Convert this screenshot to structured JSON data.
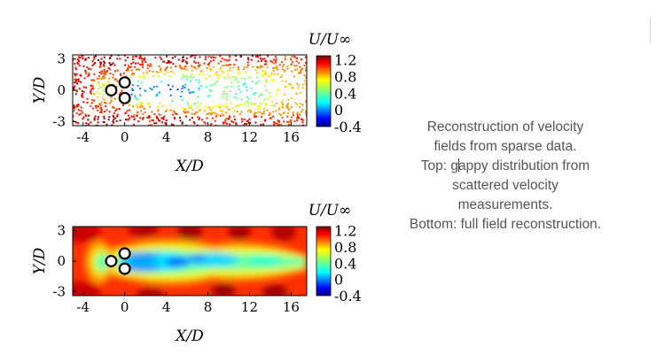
{
  "caption": {
    "line1": "Reconstruction of velocity",
    "line2": "fields from sparse data.",
    "line3_a": "Top: g",
    "line3_b": "appy distribution from",
    "line4": "scattered velocity",
    "line5": "measurements.",
    "line6": "Bottom: full field reconstruction."
  },
  "colors": {
    "jet": [
      "#00007f",
      "#0000ff",
      "#007fff",
      "#00ffff",
      "#7fff7f",
      "#ffff00",
      "#ff7f00",
      "#ff0000",
      "#7f0000"
    ]
  },
  "chart_data": [
    {
      "type": "scatter",
      "title": "",
      "xlabel": "X/D",
      "ylabel": "Y/D",
      "xlim": [
        -5,
        17.5
      ],
      "ylim": [
        -3.4,
        3.4
      ],
      "xticks": [
        "-4",
        "0",
        "4",
        "8",
        "12",
        "16"
      ],
      "yticks": [
        "3",
        "0",
        "-3"
      ],
      "colorbar": {
        "label": "U/U∞",
        "range": [
          -0.4,
          1.3
        ],
        "ticks": [
          "1.2",
          "0.8",
          "0.4",
          "0",
          "-0.4"
        ]
      },
      "cylinders": [
        [
          -1.3,
          0
        ],
        [
          0,
          0.75
        ],
        [
          0,
          -0.75
        ]
      ],
      "cylinder_radius": 0.5,
      "note": "gappy scattered velocity measurements colored by U/U∞"
    },
    {
      "type": "heatmap",
      "title": "",
      "xlabel": "X/D",
      "ylabel": "Y/D",
      "xlim": [
        -5,
        17.5
      ],
      "ylim": [
        -3.4,
        3.4
      ],
      "xticks": [
        "-4",
        "0",
        "4",
        "8",
        "12",
        "16"
      ],
      "yticks": [
        "3",
        "0",
        "-3"
      ],
      "colorbar": {
        "label": "U/U∞",
        "range": [
          -0.4,
          1.3
        ],
        "ticks": [
          "1.2",
          "0.8",
          "0.4",
          "0",
          "-0.4"
        ]
      },
      "cylinders": [
        [
          -1.3,
          0
        ],
        [
          0,
          0.75
        ],
        [
          0,
          -0.75
        ]
      ],
      "cylinder_radius": 0.5,
      "note": "full field reconstruction of U/U∞"
    }
  ]
}
